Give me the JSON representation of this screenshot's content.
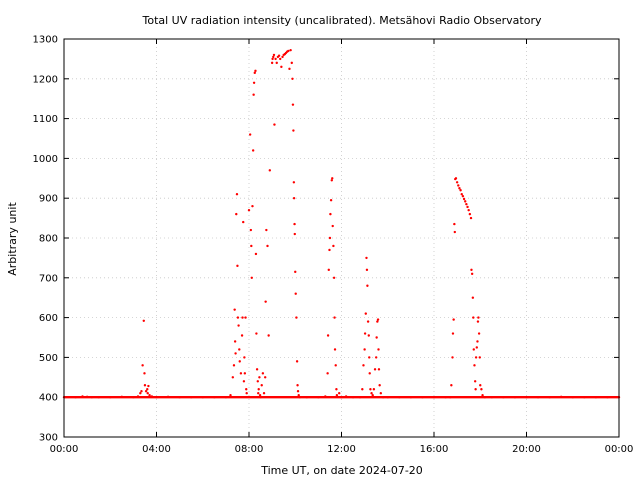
{
  "chart_data": {
    "type": "scatter",
    "title": "Total UV radiation intensity (uncalibrated). Metsähovi Radio Observatory",
    "xlabel": "Time UT, on date 2024-07-20",
    "ylabel": "Arbitrary unit",
    "xlim": [
      0,
      24
    ],
    "ylim": [
      300,
      1300
    ],
    "x_ticks": [
      {
        "value": 0,
        "label": "00:00"
      },
      {
        "value": 4,
        "label": "04:00"
      },
      {
        "value": 8,
        "label": "08:00"
      },
      {
        "value": 12,
        "label": "12:00"
      },
      {
        "value": 16,
        "label": "16:00"
      },
      {
        "value": 20,
        "label": "20:00"
      },
      {
        "value": 24,
        "label": "00:00"
      }
    ],
    "y_ticks": [
      300,
      400,
      500,
      600,
      700,
      800,
      900,
      1000,
      1100,
      1200,
      1300
    ],
    "grid": true,
    "series": [
      {
        "color": "#ff0000",
        "marker": "dot",
        "baseline": 400,
        "points": [
          [
            0.0,
            400
          ],
          [
            0.5,
            400
          ],
          [
            0.8,
            402
          ],
          [
            1.0,
            401
          ],
          [
            1.2,
            400
          ],
          [
            1.5,
            400
          ],
          [
            2.0,
            400
          ],
          [
            2.5,
            401
          ],
          [
            3.0,
            400
          ],
          [
            3.2,
            402
          ],
          [
            3.3,
            410
          ],
          [
            3.35,
            415
          ],
          [
            3.4,
            480
          ],
          [
            3.45,
            592
          ],
          [
            3.48,
            460
          ],
          [
            3.5,
            430
          ],
          [
            3.55,
            415
          ],
          [
            3.6,
            420
          ],
          [
            3.62,
            410
          ],
          [
            3.65,
            428
          ],
          [
            3.7,
            405
          ],
          [
            3.8,
            402
          ],
          [
            4.0,
            400
          ],
          [
            4.5,
            401
          ],
          [
            5.0,
            400
          ],
          [
            5.5,
            400
          ],
          [
            6.0,
            400
          ],
          [
            6.5,
            400
          ],
          [
            7.0,
            400
          ],
          [
            7.2,
            405
          ],
          [
            7.3,
            450
          ],
          [
            7.35,
            480
          ],
          [
            7.38,
            620
          ],
          [
            7.4,
            540
          ],
          [
            7.42,
            510
          ],
          [
            7.45,
            860
          ],
          [
            7.48,
            910
          ],
          [
            7.5,
            730
          ],
          [
            7.52,
            600
          ],
          [
            7.55,
            580
          ],
          [
            7.58,
            520
          ],
          [
            7.6,
            490
          ],
          [
            7.65,
            460
          ],
          [
            7.7,
            555
          ],
          [
            7.72,
            600
          ],
          [
            7.75,
            840
          ],
          [
            7.78,
            440
          ],
          [
            7.8,
            500
          ],
          [
            7.82,
            460
          ],
          [
            7.85,
            600
          ],
          [
            7.88,
            420
          ],
          [
            7.9,
            410
          ],
          [
            8.0,
            870
          ],
          [
            8.05,
            1060
          ],
          [
            8.08,
            820
          ],
          [
            8.1,
            780
          ],
          [
            8.12,
            700
          ],
          [
            8.15,
            880
          ],
          [
            8.18,
            1020
          ],
          [
            8.2,
            1160
          ],
          [
            8.22,
            1190
          ],
          [
            8.25,
            1215
          ],
          [
            8.28,
            1220
          ],
          [
            8.3,
            760
          ],
          [
            8.32,
            560
          ],
          [
            8.35,
            470
          ],
          [
            8.38,
            440
          ],
          [
            8.4,
            410
          ],
          [
            8.42,
            420
          ],
          [
            8.45,
            450
          ],
          [
            8.48,
            405
          ],
          [
            8.5,
            400
          ],
          [
            8.55,
            430
          ],
          [
            8.6,
            460
          ],
          [
            8.65,
            410
          ],
          [
            8.7,
            450
          ],
          [
            8.72,
            640
          ],
          [
            8.75,
            820
          ],
          [
            8.8,
            780
          ],
          [
            8.85,
            555
          ],
          [
            8.9,
            970
          ],
          [
            9.0,
            1240
          ],
          [
            9.02,
            1250
          ],
          [
            9.05,
            1255
          ],
          [
            9.08,
            1260
          ],
          [
            9.1,
            1085
          ],
          [
            9.15,
            1250
          ],
          [
            9.2,
            1240
          ],
          [
            9.25,
            1255
          ],
          [
            9.3,
            1258
          ],
          [
            9.35,
            1250
          ],
          [
            9.4,
            1230
          ],
          [
            9.45,
            1255
          ],
          [
            9.5,
            1260
          ],
          [
            9.55,
            1262
          ],
          [
            9.6,
            1265
          ],
          [
            9.65,
            1268
          ],
          [
            9.7,
            1270
          ],
          [
            9.75,
            1225
          ],
          [
            9.8,
            1272
          ],
          [
            9.85,
            1240
          ],
          [
            9.88,
            1200
          ],
          [
            9.9,
            1135
          ],
          [
            9.92,
            1070
          ],
          [
            9.94,
            940
          ],
          [
            9.95,
            900
          ],
          [
            9.97,
            835
          ],
          [
            9.98,
            810
          ],
          [
            10.0,
            715
          ],
          [
            10.02,
            660
          ],
          [
            10.05,
            600
          ],
          [
            10.08,
            490
          ],
          [
            10.1,
            430
          ],
          [
            10.12,
            415
          ],
          [
            10.15,
            405
          ],
          [
            10.2,
            400
          ],
          [
            10.5,
            400
          ],
          [
            11.0,
            400
          ],
          [
            11.3,
            402
          ],
          [
            11.4,
            460
          ],
          [
            11.42,
            555
          ],
          [
            11.45,
            720
          ],
          [
            11.48,
            770
          ],
          [
            11.5,
            800
          ],
          [
            11.52,
            860
          ],
          [
            11.55,
            895
          ],
          [
            11.58,
            945
          ],
          [
            11.6,
            950
          ],
          [
            11.62,
            830
          ],
          [
            11.65,
            780
          ],
          [
            11.68,
            700
          ],
          [
            11.7,
            600
          ],
          [
            11.72,
            520
          ],
          [
            11.75,
            480
          ],
          [
            11.78,
            420
          ],
          [
            11.8,
            405
          ],
          [
            11.9,
            410
          ],
          [
            12.0,
            400
          ],
          [
            12.2,
            402
          ],
          [
            12.5,
            400
          ],
          [
            12.8,
            400
          ],
          [
            12.9,
            420
          ],
          [
            12.95,
            480
          ],
          [
            13.0,
            520
          ],
          [
            13.02,
            560
          ],
          [
            13.05,
            610
          ],
          [
            13.08,
            750
          ],
          [
            13.1,
            720
          ],
          [
            13.12,
            680
          ],
          [
            13.15,
            590
          ],
          [
            13.18,
            555
          ],
          [
            13.2,
            500
          ],
          [
            13.22,
            460
          ],
          [
            13.25,
            420
          ],
          [
            13.3,
            410
          ],
          [
            13.35,
            405
          ],
          [
            13.4,
            420
          ],
          [
            13.45,
            470
          ],
          [
            13.5,
            500
          ],
          [
            13.52,
            550
          ],
          [
            13.55,
            590
          ],
          [
            13.58,
            595
          ],
          [
            13.6,
            520
          ],
          [
            13.62,
            470
          ],
          [
            13.65,
            430
          ],
          [
            13.7,
            410
          ],
          [
            13.8,
            400
          ],
          [
            14.0,
            400
          ],
          [
            14.5,
            400
          ],
          [
            15.0,
            400
          ],
          [
            15.5,
            400
          ],
          [
            16.0,
            400
          ],
          [
            16.5,
            400
          ],
          [
            16.7,
            400
          ],
          [
            16.75,
            430
          ],
          [
            16.8,
            500
          ],
          [
            16.82,
            560
          ],
          [
            16.85,
            595
          ],
          [
            16.88,
            835
          ],
          [
            16.9,
            815
          ],
          [
            16.92,
            948
          ],
          [
            16.95,
            950
          ],
          [
            17.0,
            940
          ],
          [
            17.05,
            932
          ],
          [
            17.1,
            925
          ],
          [
            17.15,
            920
          ],
          [
            17.2,
            910
          ],
          [
            17.25,
            905
          ],
          [
            17.3,
            898
          ],
          [
            17.35,
            892
          ],
          [
            17.4,
            885
          ],
          [
            17.45,
            878
          ],
          [
            17.5,
            870
          ],
          [
            17.55,
            860
          ],
          [
            17.6,
            850
          ],
          [
            17.62,
            720
          ],
          [
            17.65,
            710
          ],
          [
            17.68,
            650
          ],
          [
            17.7,
            600
          ],
          [
            17.72,
            520
          ],
          [
            17.75,
            480
          ],
          [
            17.78,
            440
          ],
          [
            17.8,
            420
          ],
          [
            17.82,
            500
          ],
          [
            17.85,
            525
          ],
          [
            17.88,
            540
          ],
          [
            17.9,
            590
          ],
          [
            17.92,
            600
          ],
          [
            17.95,
            560
          ],
          [
            17.98,
            500
          ],
          [
            18.0,
            430
          ],
          [
            18.05,
            420
          ],
          [
            18.1,
            405
          ],
          [
            18.2,
            400
          ],
          [
            18.5,
            400
          ],
          [
            19.0,
            400
          ],
          [
            19.5,
            400
          ],
          [
            20.0,
            400
          ],
          [
            20.5,
            400
          ],
          [
            21.0,
            400
          ],
          [
            21.5,
            401
          ],
          [
            22.0,
            400
          ],
          [
            22.5,
            400
          ],
          [
            23.0,
            400
          ],
          [
            23.5,
            400
          ],
          [
            24.0,
            400
          ]
        ]
      }
    ]
  }
}
